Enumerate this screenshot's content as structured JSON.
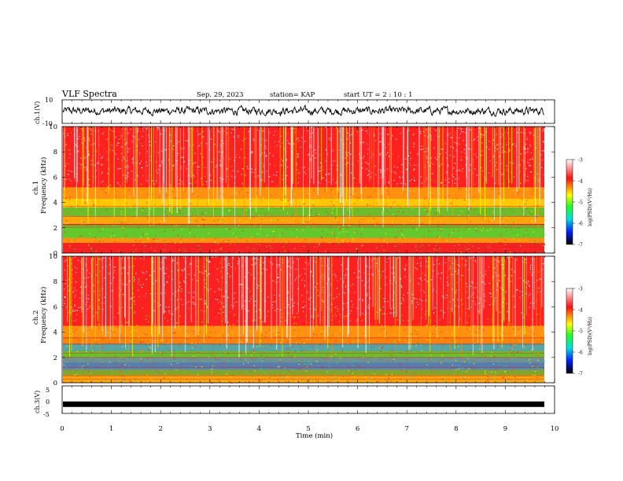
{
  "header": {
    "title": "VLF Spectra",
    "date": "Sep. 29, 2023",
    "station": "station= KAP",
    "start_label": "start",
    "start_time": "UT =  2 : 10 : 1"
  },
  "chart_data": [
    {
      "type": "line",
      "name": "ch1-waveform",
      "ylabel": "ch.1(V)",
      "ylim": [
        -10,
        10
      ],
      "yticks": [
        "10",
        "-10"
      ],
      "xlim": [
        0,
        10
      ],
      "description_values": "noisy waveform fluctuating roughly between -4 and +6 V, centered near 0"
    },
    {
      "type": "heatmap",
      "name": "ch1-spectrogram",
      "ylabel_line1": "ch.1",
      "ylabel_line2": "Frequency (kHz)",
      "ylim": [
        0,
        10
      ],
      "yticks": [
        "0",
        "2",
        "4",
        "6",
        "8",
        "10"
      ],
      "xlim": [
        0,
        9.85
      ],
      "colorbar": {
        "label": "log(PSD)(V²/Hz)",
        "range": [
          -7,
          -3
        ],
        "ticks": [
          "-3",
          "-4",
          "-5",
          "-6",
          "-7"
        ]
      }
    },
    {
      "type": "heatmap",
      "name": "ch2-spectrogram",
      "ylabel_line1": "ch.2",
      "ylabel_line2": "Frequency (kHz)",
      "ylim": [
        0,
        10
      ],
      "yticks": [
        "0",
        "2",
        "4",
        "6",
        "8",
        "10"
      ],
      "xlim": [
        0,
        9.85
      ],
      "colorbar": {
        "label": "log(PSD)(V²/Hz)",
        "range": [
          -7,
          -3
        ],
        "ticks": [
          "-3",
          "-4",
          "-5",
          "-6",
          "-7"
        ]
      }
    },
    {
      "type": "line",
      "name": "ch3-waveform",
      "ylabel": "ch.3(V)",
      "ylim": [
        -5,
        5
      ],
      "yticks": [
        "5",
        "0",
        "-5"
      ],
      "xlim": [
        0,
        10
      ],
      "level": -1.5
    }
  ],
  "xaxis": {
    "label": "Time (min)",
    "ticks": [
      "0",
      "1",
      "2",
      "3",
      "4",
      "5",
      "6",
      "7",
      "8",
      "9",
      "10"
    ]
  },
  "colors": {
    "red": "#ff2020",
    "orange": "#ff9a00",
    "yellow": "#ffff00",
    "green": "#30ff30",
    "cyan": "#20d0d0",
    "blue": "#1040ff",
    "black": "#000000"
  }
}
